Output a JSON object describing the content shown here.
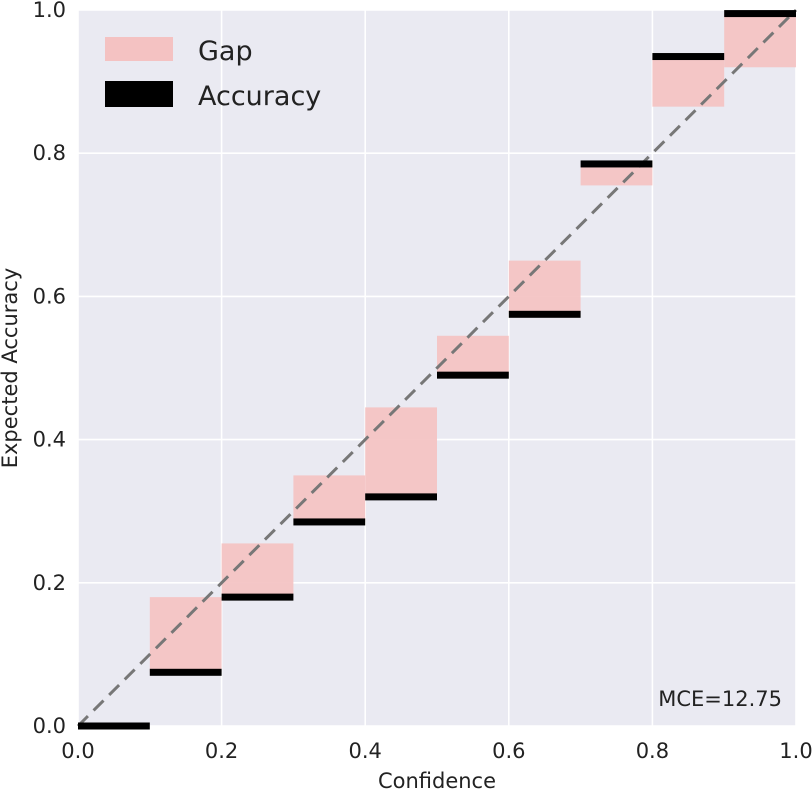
{
  "chart_data": {
    "type": "bar",
    "xlabel": "Confidence",
    "ylabel": "Expected Accuracy",
    "xlim": [
      0,
      1
    ],
    "ylim": [
      0,
      1
    ],
    "xticks": [
      "0.0",
      "0.2",
      "0.4",
      "0.6",
      "0.8",
      "1.0"
    ],
    "yticks": [
      "0.0",
      "0.2",
      "0.4",
      "0.6",
      "0.8",
      "1.0"
    ],
    "grid": true,
    "legend_position": "top-left",
    "annotation": "MCE=12.75",
    "bin_width": 0.1,
    "bins": [
      {
        "x": 0.0,
        "accuracy": 0.0,
        "gap_top": 0.0
      },
      {
        "x": 0.1,
        "accuracy": 0.075,
        "gap_top": 0.18
      },
      {
        "x": 0.2,
        "accuracy": 0.18,
        "gap_top": 0.255
      },
      {
        "x": 0.3,
        "accuracy": 0.285,
        "gap_top": 0.35
      },
      {
        "x": 0.4,
        "accuracy": 0.32,
        "gap_top": 0.445
      },
      {
        "x": 0.5,
        "accuracy": 0.49,
        "gap_top": 0.545
      },
      {
        "x": 0.6,
        "accuracy": 0.575,
        "gap_top": 0.65
      },
      {
        "x": 0.7,
        "accuracy": 0.785,
        "gap_top": 0.755
      },
      {
        "x": 0.8,
        "accuracy": 0.935,
        "gap_top": 0.865
      },
      {
        "x": 0.9,
        "accuracy": 0.995,
        "gap_top": 0.92
      }
    ],
    "series": [
      {
        "name": "Gap",
        "color": "#f4c2c2"
      },
      {
        "name": "Accuracy",
        "color": "#000000"
      }
    ],
    "diagonal": {
      "from": [
        0,
        0
      ],
      "to": [
        1,
        1
      ],
      "color": "#777777",
      "style": "dashed"
    },
    "background_color": "#eaeaf2"
  }
}
